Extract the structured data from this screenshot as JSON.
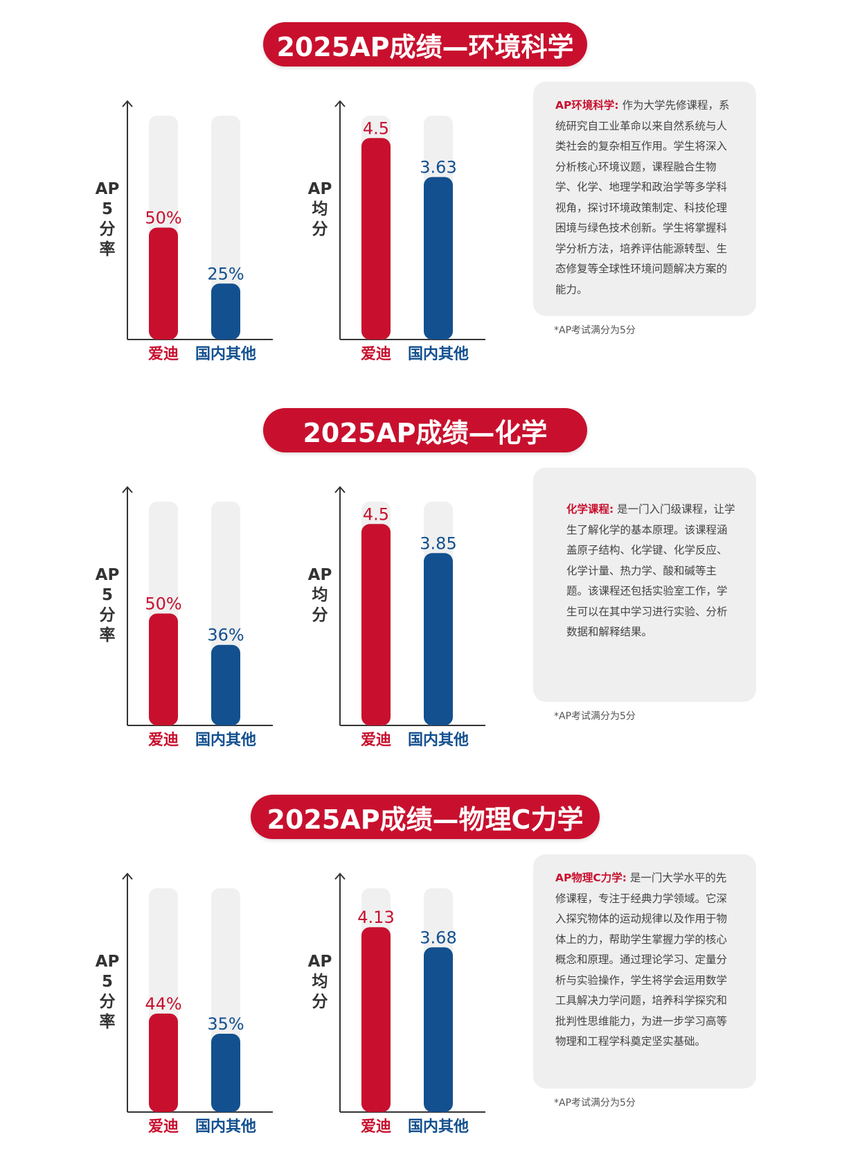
{
  "colors": {
    "primary": "#c8102e",
    "secondary": "#13508f",
    "track": "#f0f0f0",
    "axis": "#333333"
  },
  "sections": [
    {
      "title": "2025AP成绩—环境科学",
      "description": {
        "label": "AP环境科学:",
        "text": "作为大学先修课程，系统研究自工业革命以来自然系统与人类社会的复杂相互作用。学生将深入分析核心环境议题，课程融合生物学、化学、地理学和政治学等多学科视角，探讨环境政策制定、科技伦理困境与绿色技术创新。学生将掌握科学分析方法，培养评估能源转型、生态修复等全球性环境问题解决方案的能力。"
      },
      "note": "*AP考试满分为5分"
    },
    {
      "title": "2025AP成绩—化学",
      "description": {
        "label": "化学课程:",
        "text": "是一门入门级课程，让学生了解化学的基本原理。该课程涵盖原子结构、化学键、化学反应、化学计量、热力学、酸和碱等主题。该课程还包括实验室工作，学生可以在其中学习进行实验、分析数据和解释结果。"
      },
      "note": "*AP考试满分为5分"
    },
    {
      "title": "2025AP成绩—物理C力学",
      "description": {
        "label": "AP物理C力学:",
        "text": "是一门大学水平的先修课程，专注于经典力学领域。它深入探究物体的运动规律以及作用于物体上的力，帮助学生掌握力学的核心概念和原理。通过理论学习、定量分析与实验操作，学生将学会运用数学工具解决力学问题，培养科学探究和批判性思维能力，为进一步学习高等物理和工程学科奠定坚实基础。"
      },
      "note": "*AP考试满分为5分"
    }
  ],
  "chart_data": [
    {
      "type": "bar",
      "section": 0,
      "ylabel": "AP\n5\n分\n率",
      "categories": [
        "爱迪",
        "国内其他"
      ],
      "values": [
        50,
        25
      ],
      "labels": [
        "50%",
        "25%"
      ],
      "ylim": [
        0,
        100
      ]
    },
    {
      "type": "bar",
      "section": 0,
      "ylabel": "AP\n均\n分",
      "categories": [
        "爱迪",
        "国内其他"
      ],
      "values": [
        4.5,
        3.63
      ],
      "labels": [
        "4.5",
        "3.63"
      ],
      "ylim": [
        0,
        5
      ]
    },
    {
      "type": "bar",
      "section": 1,
      "ylabel": "AP\n5\n分\n率",
      "categories": [
        "爱迪",
        "国内其他"
      ],
      "values": [
        50,
        36
      ],
      "labels": [
        "50%",
        "36%"
      ],
      "ylim": [
        0,
        100
      ]
    },
    {
      "type": "bar",
      "section": 1,
      "ylabel": "AP\n均\n分",
      "categories": [
        "爱迪",
        "国内其他"
      ],
      "values": [
        4.5,
        3.85
      ],
      "labels": [
        "4.5",
        "3.85"
      ],
      "ylim": [
        0,
        5
      ]
    },
    {
      "type": "bar",
      "section": 2,
      "ylabel": "AP\n5\n分\n率",
      "categories": [
        "爱迪",
        "国内其他"
      ],
      "values": [
        44,
        35
      ],
      "labels": [
        "44%",
        "35%"
      ],
      "ylim": [
        0,
        100
      ]
    },
    {
      "type": "bar",
      "section": 2,
      "ylabel": "AP\n均\n分",
      "categories": [
        "爱迪",
        "国内其他"
      ],
      "values": [
        4.13,
        3.68
      ],
      "labels": [
        "4.13",
        "3.68"
      ],
      "ylim": [
        0,
        5
      ]
    }
  ]
}
